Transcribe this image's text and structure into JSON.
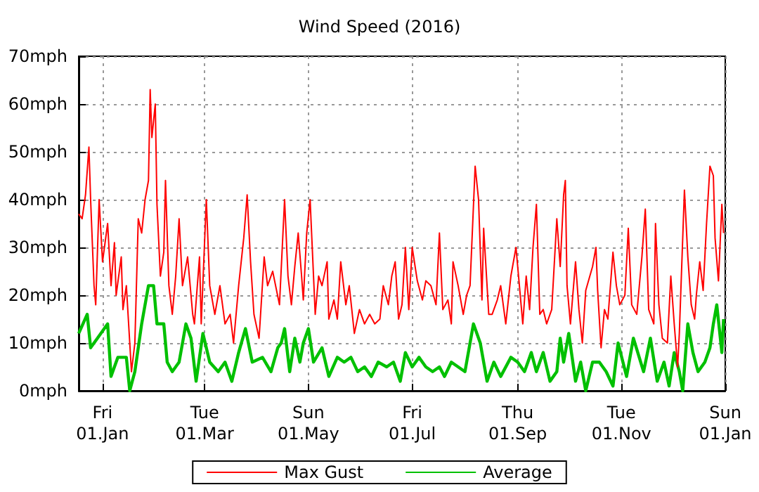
{
  "chart_data": {
    "type": "line",
    "title": "Wind Speed (2016)",
    "legend": "bottom",
    "grid": true,
    "line_style": "solid",
    "marker": "none",
    "xlim": [
      "2015-12-18",
      "2017-01-01"
    ],
    "xticks": [
      {
        "value": "2016-01-01",
        "label": "Fri\n01.Jan"
      },
      {
        "value": "2016-03-01",
        "label": "Tue\n01.Mar"
      },
      {
        "value": "2016-05-01",
        "label": "Sun\n01.May"
      },
      {
        "value": "2016-07-01",
        "label": "Fri\n01.Jul"
      },
      {
        "value": "2016-09-01",
        "label": "Thu\n01.Sep"
      },
      {
        "value": "2016-11-01",
        "label": "Tue\n01.Nov"
      },
      {
        "value": "2017-01-01",
        "label": "Sun\n01.Jan"
      }
    ],
    "ylim": [
      0,
      70
    ],
    "yticks": [
      {
        "value": 0,
        "label": "0mph"
      },
      {
        "value": 10,
        "label": "10mph"
      },
      {
        "value": 20,
        "label": "20mph"
      },
      {
        "value": 30,
        "label": "30mph"
      },
      {
        "value": 40,
        "label": "40mph"
      },
      {
        "value": 50,
        "label": "50mph"
      },
      {
        "value": 60,
        "label": "60mph"
      },
      {
        "value": 70,
        "label": "70mph"
      }
    ],
    "series": [
      {
        "name": "Max Gust",
        "color": "#ff0000",
        "x": [
          "2015-12-18",
          "2015-12-20",
          "2015-12-22",
          "2015-12-24",
          "2015-12-25",
          "2015-12-27",
          "2015-12-28",
          "2015-12-30",
          "2016-01-01",
          "2016-01-04",
          "2016-01-06",
          "2016-01-08",
          "2016-01-09",
          "2016-01-12",
          "2016-01-13",
          "2016-01-15",
          "2016-01-17",
          "2016-01-18",
          "2016-01-20",
          "2016-01-22",
          "2016-01-24",
          "2016-01-26",
          "2016-01-28",
          "2016-01-29",
          "2016-01-30",
          "2016-02-01",
          "2016-02-02",
          "2016-02-04",
          "2016-02-06",
          "2016-02-07",
          "2016-02-09",
          "2016-02-11",
          "2016-02-13",
          "2016-02-15",
          "2016-02-17",
          "2016-02-20",
          "2016-02-23",
          "2016-02-24",
          "2016-02-27",
          "2016-02-28",
          "2016-03-02",
          "2016-03-04",
          "2016-03-07",
          "2016-03-10",
          "2016-03-13",
          "2016-03-16",
          "2016-03-18",
          "2016-03-21",
          "2016-03-24",
          "2016-03-26",
          "2016-03-28",
          "2016-03-30",
          "2016-04-02",
          "2016-04-05",
          "2016-04-07",
          "2016-04-10",
          "2016-04-14",
          "2016-04-17",
          "2016-04-19",
          "2016-04-21",
          "2016-04-23",
          "2016-04-25",
          "2016-04-27",
          "2016-04-28",
          "2016-04-30",
          "2016-05-02",
          "2016-05-03",
          "2016-05-05",
          "2016-05-07",
          "2016-05-09",
          "2016-05-12",
          "2016-05-13",
          "2016-05-16",
          "2016-05-18",
          "2016-05-20",
          "2016-05-23",
          "2016-05-25",
          "2016-05-28",
          "2016-05-31",
          "2016-06-03",
          "2016-06-06",
          "2016-06-09",
          "2016-06-12",
          "2016-06-14",
          "2016-06-17",
          "2016-06-19",
          "2016-06-21",
          "2016-06-23",
          "2016-06-25",
          "2016-06-27",
          "2016-06-29",
          "2016-07-01",
          "2016-07-04",
          "2016-07-07",
          "2016-07-09",
          "2016-07-12",
          "2016-07-15",
          "2016-07-17",
          "2016-07-19",
          "2016-07-22",
          "2016-07-24",
          "2016-07-25",
          "2016-07-28",
          "2016-07-31",
          "2016-08-02",
          "2016-08-04",
          "2016-08-07",
          "2016-08-09",
          "2016-08-11",
          "2016-08-12",
          "2016-08-15",
          "2016-08-17",
          "2016-08-20",
          "2016-08-22",
          "2016-08-25",
          "2016-08-28",
          "2016-08-31",
          "2016-09-02",
          "2016-09-04",
          "2016-09-06",
          "2016-09-08",
          "2016-09-10",
          "2016-09-12",
          "2016-09-14",
          "2016-09-16",
          "2016-09-18",
          "2016-09-21",
          "2016-09-24",
          "2016-09-26",
          "2016-09-28",
          "2016-09-29",
          "2016-09-30",
          "2016-10-02",
          "2016-10-05",
          "2016-10-07",
          "2016-10-09",
          "2016-10-11",
          "2016-10-15",
          "2016-10-17",
          "2016-10-18",
          "2016-10-20",
          "2016-10-22",
          "2016-10-24",
          "2016-10-27",
          "2016-10-29",
          "2016-10-31",
          "2016-11-03",
          "2016-11-05",
          "2016-11-07",
          "2016-11-10",
          "2016-11-13",
          "2016-11-15",
          "2016-11-17",
          "2016-11-20",
          "2016-11-21",
          "2016-11-23",
          "2016-11-25",
          "2016-11-28",
          "2016-11-30",
          "2016-12-02",
          "2016-12-04",
          "2016-12-05",
          "2016-12-08",
          "2016-12-10",
          "2016-12-12",
          "2016-12-14",
          "2016-12-15",
          "2016-12-17",
          "2016-12-19",
          "2016-12-21",
          "2016-12-23",
          "2016-12-25",
          "2016-12-26",
          "2016-12-28",
          "2016-12-29",
          "2016-12-30",
          "2016-12-31"
        ],
        "values": [
          37,
          36,
          41,
          51,
          40,
          22,
          18,
          40,
          27,
          35,
          22,
          31,
          20,
          28,
          17,
          22,
          10,
          4,
          10,
          36,
          33,
          40,
          44,
          63,
          53,
          60,
          39,
          24,
          29,
          44,
          22,
          16,
          24,
          36,
          22,
          28,
          16,
          14,
          28,
          14,
          40,
          22,
          16,
          22,
          14,
          16,
          10,
          22,
          32,
          41,
          27,
          16,
          11,
          28,
          22,
          25,
          18,
          40,
          24,
          18,
          26,
          33,
          24,
          19,
          33,
          40,
          32,
          16,
          24,
          22,
          27,
          15,
          19,
          15,
          27,
          18,
          22,
          12,
          17,
          14,
          16,
          14,
          15,
          22,
          18,
          24,
          27,
          15,
          18,
          30,
          17,
          30,
          23,
          19,
          23,
          22,
          18,
          33,
          17,
          19,
          14,
          27,
          22,
          16,
          20,
          22,
          47,
          40,
          19,
          34,
          16,
          16,
          19,
          22,
          14,
          24,
          30,
          22,
          14,
          24,
          17,
          30,
          39,
          16,
          17,
          14,
          17,
          36,
          26,
          41,
          44,
          22,
          14,
          27,
          17,
          10,
          21,
          26,
          30,
          21,
          9,
          17,
          15,
          29,
          22,
          18,
          20,
          34,
          18,
          16,
          28,
          38,
          17,
          14,
          35,
          18,
          11,
          10,
          24,
          14,
          5,
          12,
          42,
          28,
          18,
          15,
          20,
          27,
          21,
          35,
          47,
          45,
          32,
          23,
          31,
          39,
          33
        ]
      },
      {
        "name": "Average",
        "color": "#00c000",
        "x": [
          "2015-12-18",
          "2015-12-23",
          "2015-12-25",
          "2015-12-29",
          "2016-01-04",
          "2016-01-06",
          "2016-01-10",
          "2016-01-15",
          "2016-01-17",
          "2016-01-20",
          "2016-01-24",
          "2016-01-28",
          "2016-01-31",
          "2016-02-02",
          "2016-02-06",
          "2016-02-08",
          "2016-02-11",
          "2016-02-15",
          "2016-02-19",
          "2016-02-22",
          "2016-02-25",
          "2016-02-29",
          "2016-03-04",
          "2016-03-09",
          "2016-03-13",
          "2016-03-17",
          "2016-03-21",
          "2016-03-25",
          "2016-03-29",
          "2016-04-04",
          "2016-04-09",
          "2016-04-13",
          "2016-04-15",
          "2016-04-17",
          "2016-04-20",
          "2016-04-23",
          "2016-04-26",
          "2016-04-28",
          "2016-05-01",
          "2016-05-04",
          "2016-05-09",
          "2016-05-13",
          "2016-05-18",
          "2016-05-22",
          "2016-05-26",
          "2016-05-30",
          "2016-06-03",
          "2016-06-07",
          "2016-06-11",
          "2016-06-16",
          "2016-06-20",
          "2016-06-24",
          "2016-06-27",
          "2016-07-01",
          "2016-07-05",
          "2016-07-09",
          "2016-07-13",
          "2016-07-17",
          "2016-07-20",
          "2016-07-24",
          "2016-07-28",
          "2016-08-01",
          "2016-08-06",
          "2016-08-10",
          "2016-08-14",
          "2016-08-18",
          "2016-08-22",
          "2016-08-28",
          "2016-09-01",
          "2016-09-05",
          "2016-09-09",
          "2016-09-12",
          "2016-09-16",
          "2016-09-20",
          "2016-09-24",
          "2016-09-26",
          "2016-09-28",
          "2016-10-01",
          "2016-10-05",
          "2016-10-08",
          "2016-10-11",
          "2016-10-15",
          "2016-10-19",
          "2016-10-23",
          "2016-10-27",
          "2016-10-30",
          "2016-11-04",
          "2016-11-08",
          "2016-11-14",
          "2016-11-18",
          "2016-11-22",
          "2016-11-26",
          "2016-11-29",
          "2016-12-02",
          "2016-12-05",
          "2016-12-07",
          "2016-12-10",
          "2016-12-13",
          "2016-12-16",
          "2016-12-20",
          "2016-12-23",
          "2016-12-25",
          "2016-12-27",
          "2016-12-30",
          "2016-12-31"
        ],
        "values": [
          12,
          16,
          9,
          11,
          14,
          3,
          7,
          7,
          0,
          4,
          14,
          22,
          22,
          14,
          14,
          6,
          4,
          6,
          14,
          11,
          2,
          12,
          6,
          4,
          6,
          2,
          8,
          13,
          6,
          7,
          4,
          9,
          10,
          13,
          4,
          11,
          6,
          10,
          13,
          6,
          9,
          3,
          7,
          6,
          7,
          4,
          5,
          3,
          6,
          5,
          6,
          2,
          8,
          5,
          7,
          5,
          4,
          5,
          3,
          6,
          5,
          4,
          14,
          10,
          2,
          6,
          3,
          7,
          6,
          4,
          8,
          4,
          8,
          2,
          4,
          11,
          6,
          12,
          2,
          6,
          0,
          6,
          6,
          4,
          1,
          10,
          3,
          11,
          4,
          11,
          2,
          6,
          1,
          8,
          4,
          0,
          14,
          8,
          4,
          6,
          9,
          14,
          18,
          8,
          15
        ]
      }
    ]
  }
}
